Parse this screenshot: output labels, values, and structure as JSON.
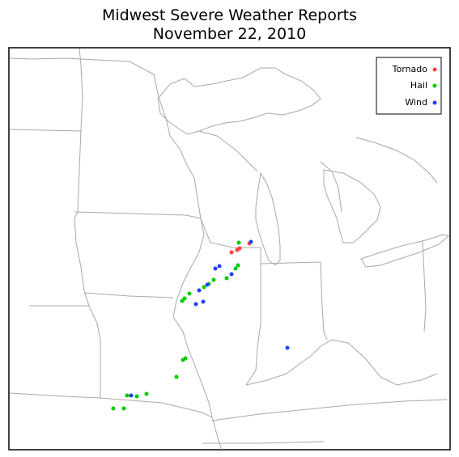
{
  "title": {
    "line1": "Midwest Severe Weather Reports",
    "line2": "November 22, 2010"
  },
  "legend": [
    {
      "label": "Tornado",
      "color": "#ff4040"
    },
    {
      "label": "Hail",
      "color": "#00cc00"
    },
    {
      "label": "Wind",
      "color": "#2040ff"
    }
  ],
  "colors": {
    "frame": "#000000",
    "boundary": "#a8a8a8",
    "background": "#ffffff"
  }
}
